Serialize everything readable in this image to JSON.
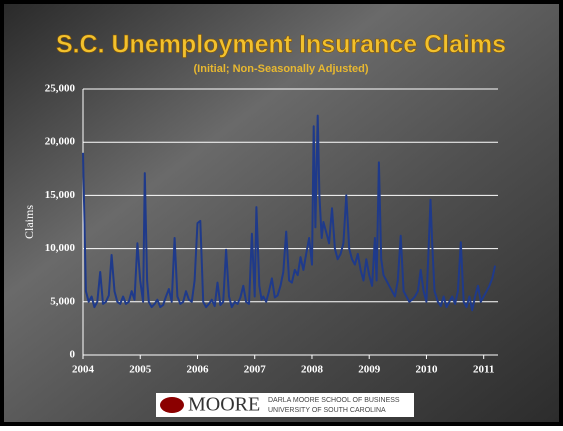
{
  "chart_data": {
    "type": "line",
    "title": "S.C. Unemployment Insurance Claims",
    "subtitle": "(Initial; Non-Seasonally Adjusted)",
    "y_label": "Claims",
    "color": "#1f3a8a",
    "grid": true,
    "xlim": [
      2004,
      2011.25
    ],
    "xticks": [
      2004,
      2005,
      2006,
      2007,
      2008,
      2009,
      2010,
      2011
    ],
    "ylim": [
      0,
      25000
    ],
    "yticks": [
      0,
      {
        "value": 5000,
        "label": "5,000"
      },
      {
        "value": 10000,
        "label": "10,000"
      },
      {
        "value": 15000,
        "label": "15,000"
      },
      {
        "value": 20000,
        "label": "20,000"
      },
      {
        "value": 25000,
        "label": "25,000"
      }
    ],
    "x": [
      2004.0,
      2004.05,
      2004.1,
      2004.15,
      2004.2,
      2004.25,
      2004.3,
      2004.35,
      2004.4,
      2004.45,
      2004.5,
      2004.55,
      2004.6,
      2004.65,
      2004.7,
      2004.75,
      2004.8,
      2004.85,
      2004.9,
      2004.95,
      2005.0,
      2005.05,
      2005.08,
      2005.12,
      2005.15,
      2005.2,
      2005.25,
      2005.3,
      2005.35,
      2005.4,
      2005.45,
      2005.5,
      2005.55,
      2005.6,
      2005.65,
      2005.7,
      2005.75,
      2005.8,
      2005.85,
      2005.9,
      2005.95,
      2006.0,
      2006.05,
      2006.1,
      2006.15,
      2006.2,
      2006.25,
      2006.3,
      2006.35,
      2006.4,
      2006.45,
      2006.5,
      2006.55,
      2006.6,
      2006.65,
      2006.7,
      2006.75,
      2006.8,
      2006.85,
      2006.9,
      2006.95,
      2007.0,
      2007.03,
      2007.08,
      2007.12,
      2007.15,
      2007.2,
      2007.25,
      2007.3,
      2007.35,
      2007.4,
      2007.45,
      2007.5,
      2007.55,
      2007.6,
      2007.65,
      2007.7,
      2007.75,
      2007.8,
      2007.85,
      2007.9,
      2007.95,
      2008.0,
      2008.03,
      2008.06,
      2008.1,
      2008.13,
      2008.17,
      2008.2,
      2008.25,
      2008.3,
      2008.35,
      2008.4,
      2008.45,
      2008.5,
      2008.55,
      2008.6,
      2008.65,
      2008.7,
      2008.75,
      2008.8,
      2008.85,
      2008.9,
      2008.95,
      2009.0,
      2009.05,
      2009.1,
      2009.13,
      2009.17,
      2009.21,
      2009.25,
      2009.3,
      2009.35,
      2009.4,
      2009.45,
      2009.5,
      2009.55,
      2009.6,
      2009.65,
      2009.7,
      2009.75,
      2009.8,
      2009.85,
      2009.9,
      2009.95,
      2010.0,
      2010.03,
      2010.07,
      2010.1,
      2010.14,
      2010.2,
      2010.25,
      2010.3,
      2010.35,
      2010.4,
      2010.45,
      2010.5,
      2010.55,
      2010.6,
      2010.65,
      2010.7,
      2010.75,
      2010.8,
      2010.85,
      2010.9,
      2010.95,
      2011.0,
      2011.05,
      2011.1,
      2011.15,
      2011.2
    ],
    "values": [
      19000,
      6000,
      5000,
      5500,
      4500,
      5000,
      7800,
      4800,
      5000,
      5600,
      9400,
      6000,
      5000,
      4800,
      5500,
      4800,
      5000,
      6000,
      5200,
      10500,
      7000,
      5000,
      17100,
      7000,
      5000,
      4500,
      4800,
      5200,
      4500,
      4700,
      5500,
      6200,
      5000,
      11000,
      5500,
      4800,
      5000,
      6000,
      5200,
      5000,
      7000,
      12400,
      12600,
      5000,
      4500,
      4800,
      5200,
      4600,
      6800,
      4700,
      5000,
      9900,
      5500,
      4500,
      5000,
      4800,
      5400,
      6500,
      5000,
      4800,
      11400,
      5500,
      13900,
      6500,
      5200,
      5500,
      5000,
      6000,
      7200,
      5400,
      5600,
      6500,
      7800,
      11600,
      7000,
      6800,
      8000,
      7500,
      9200,
      8000,
      9500,
      11000,
      8500,
      21500,
      12000,
      22500,
      15000,
      11000,
      12500,
      11500,
      10500,
      13800,
      10000,
      9000,
      9500,
      10500,
      15000,
      10000,
      9000,
      8500,
      9500,
      8000,
      7000,
      9000,
      7500,
      6500,
      11000,
      7000,
      18100,
      9000,
      7500,
      7000,
      6500,
      6000,
      5500,
      7000,
      11200,
      6000,
      5500,
      5000,
      5200,
      5500,
      6000,
      8000,
      6000,
      5000,
      9000,
      14600,
      10500,
      6000,
      5000,
      4600,
      5500,
      4500,
      5000,
      5500,
      4800,
      6000,
      10600,
      5000,
      4500,
      5500,
      4200,
      5500,
      6500,
      5000,
      5500,
      6000,
      6500,
      7200,
      8400
    ]
  },
  "footer": {
    "logo": "MOORE",
    "line1": "DARLA MOORE SCHOOL OF BUSINESS",
    "line2": "UNIVERSITY OF SOUTH CAROLINA"
  }
}
